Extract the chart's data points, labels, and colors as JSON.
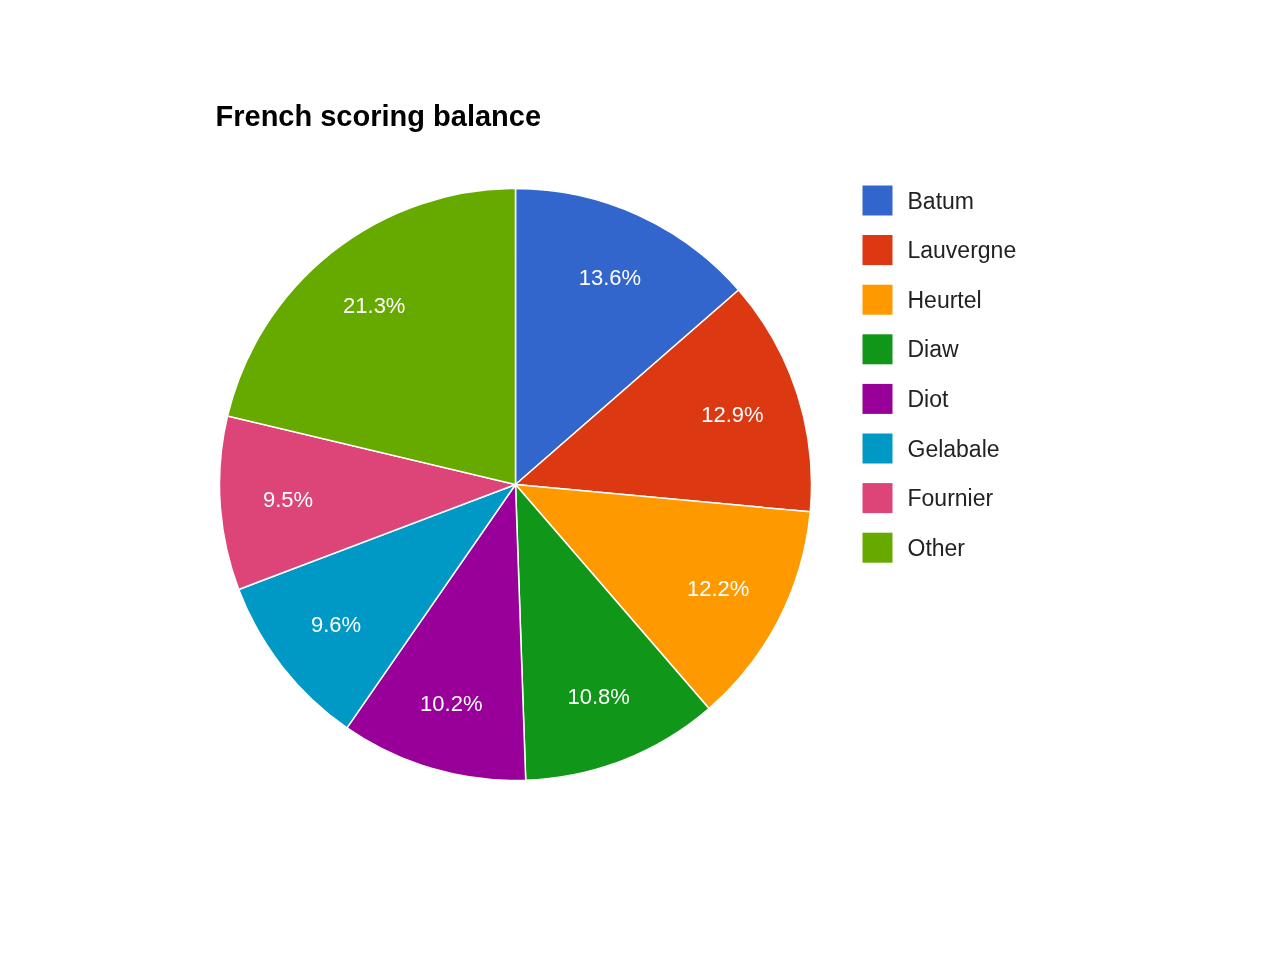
{
  "chart_data": {
    "type": "pie",
    "title": "French scoring balance",
    "categories": [
      "Batum",
      "Lauvergne",
      "Heurtel",
      "Diaw",
      "Diot",
      "Gelabale",
      "Fournier",
      "Other"
    ],
    "values": [
      13.6,
      12.9,
      12.2,
      10.8,
      10.2,
      9.6,
      9.5,
      21.3
    ],
    "colors": [
      "#3366cc",
      "#dc3912",
      "#ff9900",
      "#109618",
      "#990099",
      "#0099c6",
      "#dd4477",
      "#66aa00"
    ],
    "value_labels": [
      "13.6%",
      "12.9%",
      "12.2%",
      "10.8%",
      "10.2%",
      "9.6%",
      "9.5%",
      "21.3%"
    ],
    "legend": "right"
  }
}
